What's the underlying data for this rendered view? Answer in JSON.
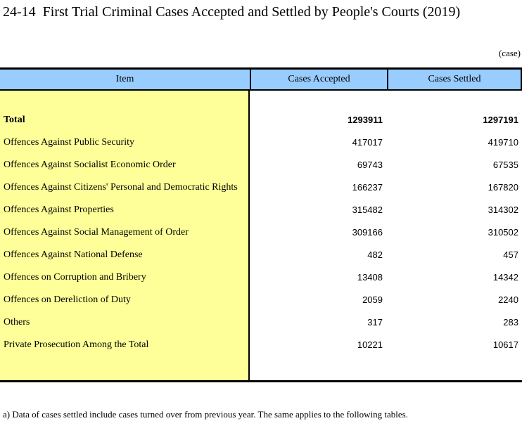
{
  "page": {
    "title": "24-14  First Trial Criminal Cases Accepted and Settled by People's Courts (2019)",
    "unit_label": "(case)",
    "footnote": "a) Data of cases settled include cases turned over from previous year. The same applies to the following tables."
  },
  "table": {
    "columns": [
      "Item",
      "Cases Accepted",
      "Cases Settled"
    ],
    "colors": {
      "header_bg": "#99CCFF",
      "item_bg": "#FFFF99",
      "border": "#000000"
    },
    "rows": [
      {
        "item": "Total",
        "accepted": "1293911",
        "settled": "1297191"
      },
      {
        "item": "Offences Against Public Security",
        "accepted": "417017",
        "settled": "419710"
      },
      {
        "item": "Offences Against Socialist Economic Order",
        "accepted": "69743",
        "settled": "67535"
      },
      {
        "item": "Offences Against Citizens' Personal and Democratic Rights",
        "accepted": "166237",
        "settled": "167820"
      },
      {
        "item": "Offences Against Properties",
        "accepted": "315482",
        "settled": "314302"
      },
      {
        "item": "Offences Against Social Management of Order",
        "accepted": "309166",
        "settled": "310502"
      },
      {
        "item": "Offences Against National Defense",
        "accepted": "482",
        "settled": "457"
      },
      {
        "item": "Offences on Corruption and Bribery",
        "accepted": "13408",
        "settled": "14342"
      },
      {
        "item": "Offences on Dereliction of Duty",
        "accepted": "2059",
        "settled": "2240"
      },
      {
        "item": "Others",
        "accepted": "317",
        "settled": "283"
      },
      {
        "item": "Private Prosecution Among the Total",
        "accepted": "10221",
        "settled": "10617"
      }
    ]
  }
}
